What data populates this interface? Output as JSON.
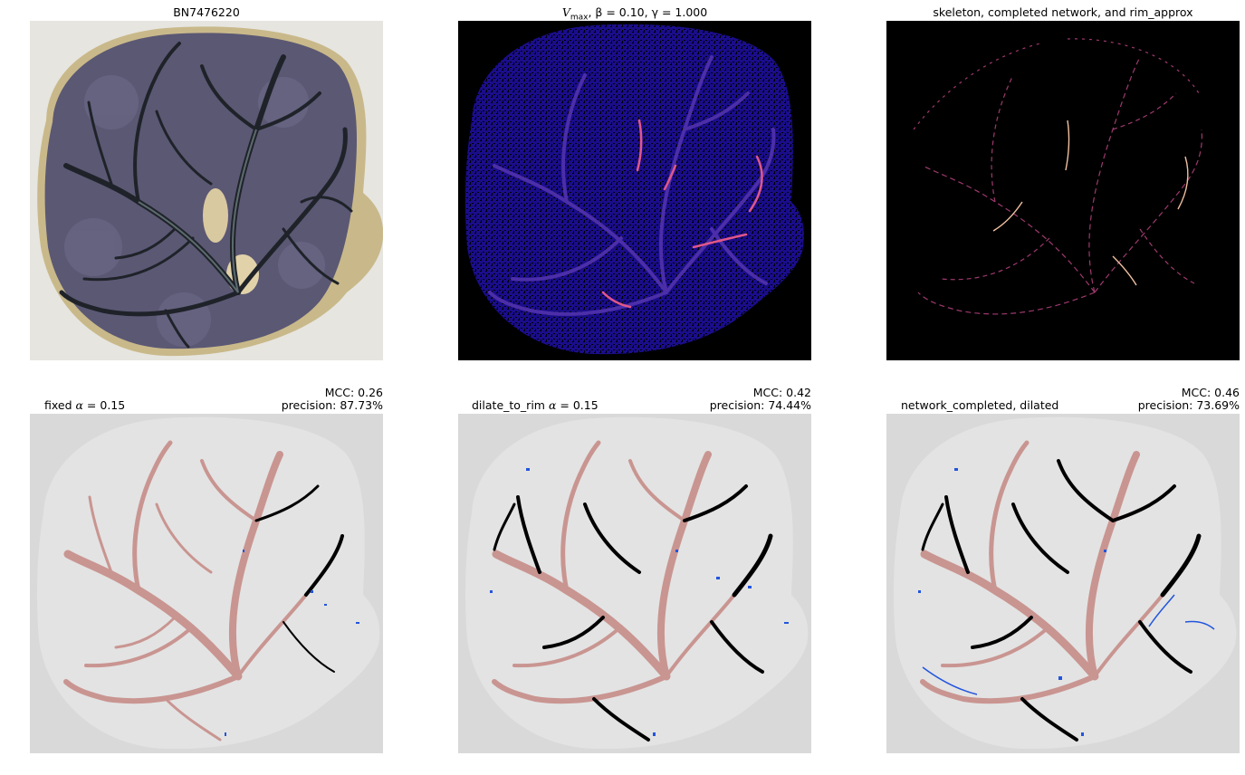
{
  "panels": [
    {
      "id": "photo",
      "title": "BN7476220"
    },
    {
      "id": "vmax",
      "title_var": "V",
      "title_sub": "max",
      "title_rest": ", β = 0.10, γ = 1.000"
    },
    {
      "id": "skeleton",
      "title": "skeleton, completed network, and rim_approx"
    },
    {
      "id": "fixed",
      "label_text": "fixed ",
      "label_rest": " = 0.15",
      "mcc": "MCC: 0.26",
      "precision": "precision: 87.73%"
    },
    {
      "id": "dilate",
      "label_text": "dilate_to_rim ",
      "label_rest": " = 0.15",
      "mcc": "MCC: 0.42",
      "precision": "precision: 74.44%"
    },
    {
      "id": "network",
      "label_text": "network_completed, dilated",
      "mcc": "MCC: 0.46",
      "precision": "precision: 73.69%"
    }
  ],
  "alpha_symbol": "α",
  "colors": {
    "photo_bg": "#e9e8e3",
    "placenta": "#5b5874",
    "vessel_dark": "#1f2329",
    "vmax_bg": "#000000",
    "vmax_fill": "#1a0d8a",
    "vmax_highlight": "#e0568a",
    "skeleton_line": "#b0407a",
    "seg_bg_outer": "#d9d9d9",
    "seg_bg_inner": "#e3e3e3",
    "true_positive": "#c99591",
    "false_negative": "#000000",
    "false_positive": "#2255dd"
  }
}
